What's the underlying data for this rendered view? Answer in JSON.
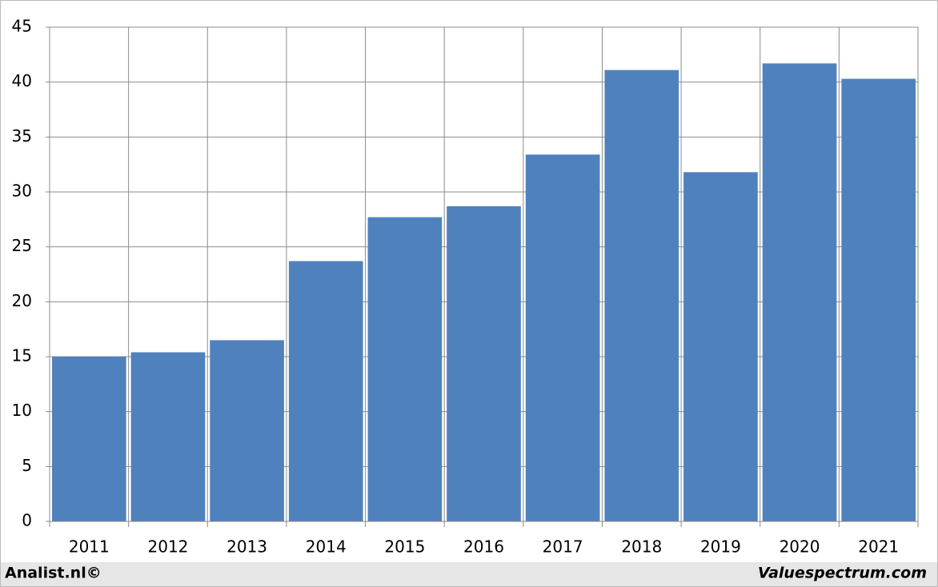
{
  "chart_data": {
    "type": "bar",
    "categories": [
      "2011",
      "2012",
      "2013",
      "2014",
      "2015",
      "2016",
      "2017",
      "2018",
      "2019",
      "2020",
      "2021"
    ],
    "values": [
      15.0,
      15.4,
      16.5,
      23.7,
      27.7,
      28.7,
      33.4,
      41.1,
      31.8,
      41.7,
      40.3
    ],
    "color": "#4f81bd",
    "ylim": [
      0,
      45
    ],
    "yticks": [
      0,
      5,
      10,
      15,
      20,
      25,
      30,
      35,
      40,
      45
    ],
    "grid": true
  },
  "footer": {
    "left": "Analist.nl©",
    "right": "Valuespectrum.com"
  }
}
